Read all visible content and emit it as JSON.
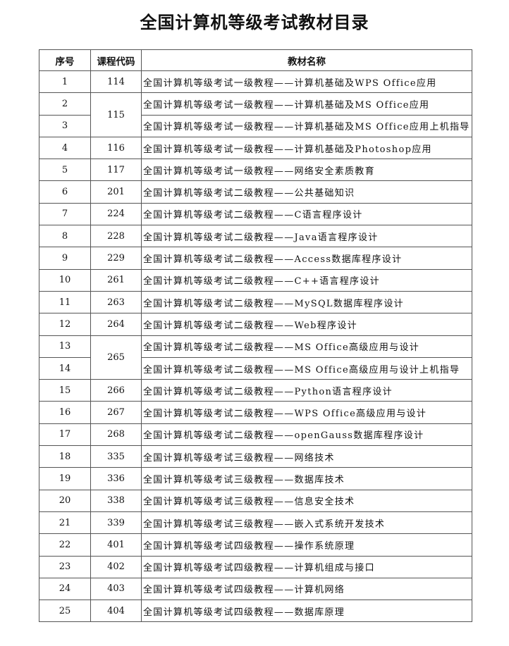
{
  "title": "全国计算机等级考试教材目录",
  "headers": [
    "序号",
    "课程代码",
    "教材名称"
  ],
  "rows": [
    {
      "no": "1",
      "code": "114",
      "name": "全国计算机等级考试一级教程——计算机基础及WPS Office应用"
    },
    {
      "no": "2",
      "code": "115",
      "name": "全国计算机等级考试一级教程——计算机基础及MS Office应用"
    },
    {
      "no": "3",
      "code": "115",
      "name": "全国计算机等级考试一级教程——计算机基础及MS Office应用上机指导"
    },
    {
      "no": "4",
      "code": "116",
      "name": "全国计算机等级考试一级教程——计算机基础及Photoshop应用"
    },
    {
      "no": "5",
      "code": "117",
      "name": "全国计算机等级考试一级教程——网络安全素质教育"
    },
    {
      "no": "6",
      "code": "201",
      "name": "全国计算机等级考试二级教程——公共基础知识"
    },
    {
      "no": "7",
      "code": "224",
      "name": "全国计算机等级考试二级教程——C语言程序设计"
    },
    {
      "no": "8",
      "code": "228",
      "name": "全国计算机等级考试二级教程——Java语言程序设计"
    },
    {
      "no": "9",
      "code": "229",
      "name": "全国计算机等级考试二级教程——Access数据库程序设计"
    },
    {
      "no": "10",
      "code": "261",
      "name": "全国计算机等级考试二级教程——C++语言程序设计"
    },
    {
      "no": "11",
      "code": "263",
      "name": "全国计算机等级考试二级教程——MySQL数据库程序设计"
    },
    {
      "no": "12",
      "code": "264",
      "name": "全国计算机等级考试二级教程——Web程序设计"
    },
    {
      "no": "13",
      "code": "265",
      "name": "全国计算机等级考试二级教程——MS Office高级应用与设计"
    },
    {
      "no": "14",
      "code": "265",
      "name": "全国计算机等级考试二级教程——MS Office高级应用与设计上机指导"
    },
    {
      "no": "15",
      "code": "266",
      "name": "全国计算机等级考试二级教程——Python语言程序设计"
    },
    {
      "no": "16",
      "code": "267",
      "name": "全国计算机等级考试二级教程——WPS Office高级应用与设计"
    },
    {
      "no": "17",
      "code": "268",
      "name": "全国计算机等级考试二级教程——openGauss数据库程序设计"
    },
    {
      "no": "18",
      "code": "335",
      "name": "全国计算机等级考试三级教程——网络技术"
    },
    {
      "no": "19",
      "code": "336",
      "name": "全国计算机等级考试三级教程——数据库技术"
    },
    {
      "no": "20",
      "code": "338",
      "name": "全国计算机等级考试三级教程——信息安全技术"
    },
    {
      "no": "21",
      "code": "339",
      "name": "全国计算机等级考试三级教程——嵌入式系统开发技术"
    },
    {
      "no": "22",
      "code": "401",
      "name": "全国计算机等级考试四级教程——操作系统原理"
    },
    {
      "no": "23",
      "code": "402",
      "name": "全国计算机等级考试四级教程——计算机组成与接口"
    },
    {
      "no": "24",
      "code": "403",
      "name": "全国计算机等级考试四级教程——计算机网络"
    },
    {
      "no": "25",
      "code": "404",
      "name": "全国计算机等级考试四级教程——数据库原理"
    }
  ]
}
